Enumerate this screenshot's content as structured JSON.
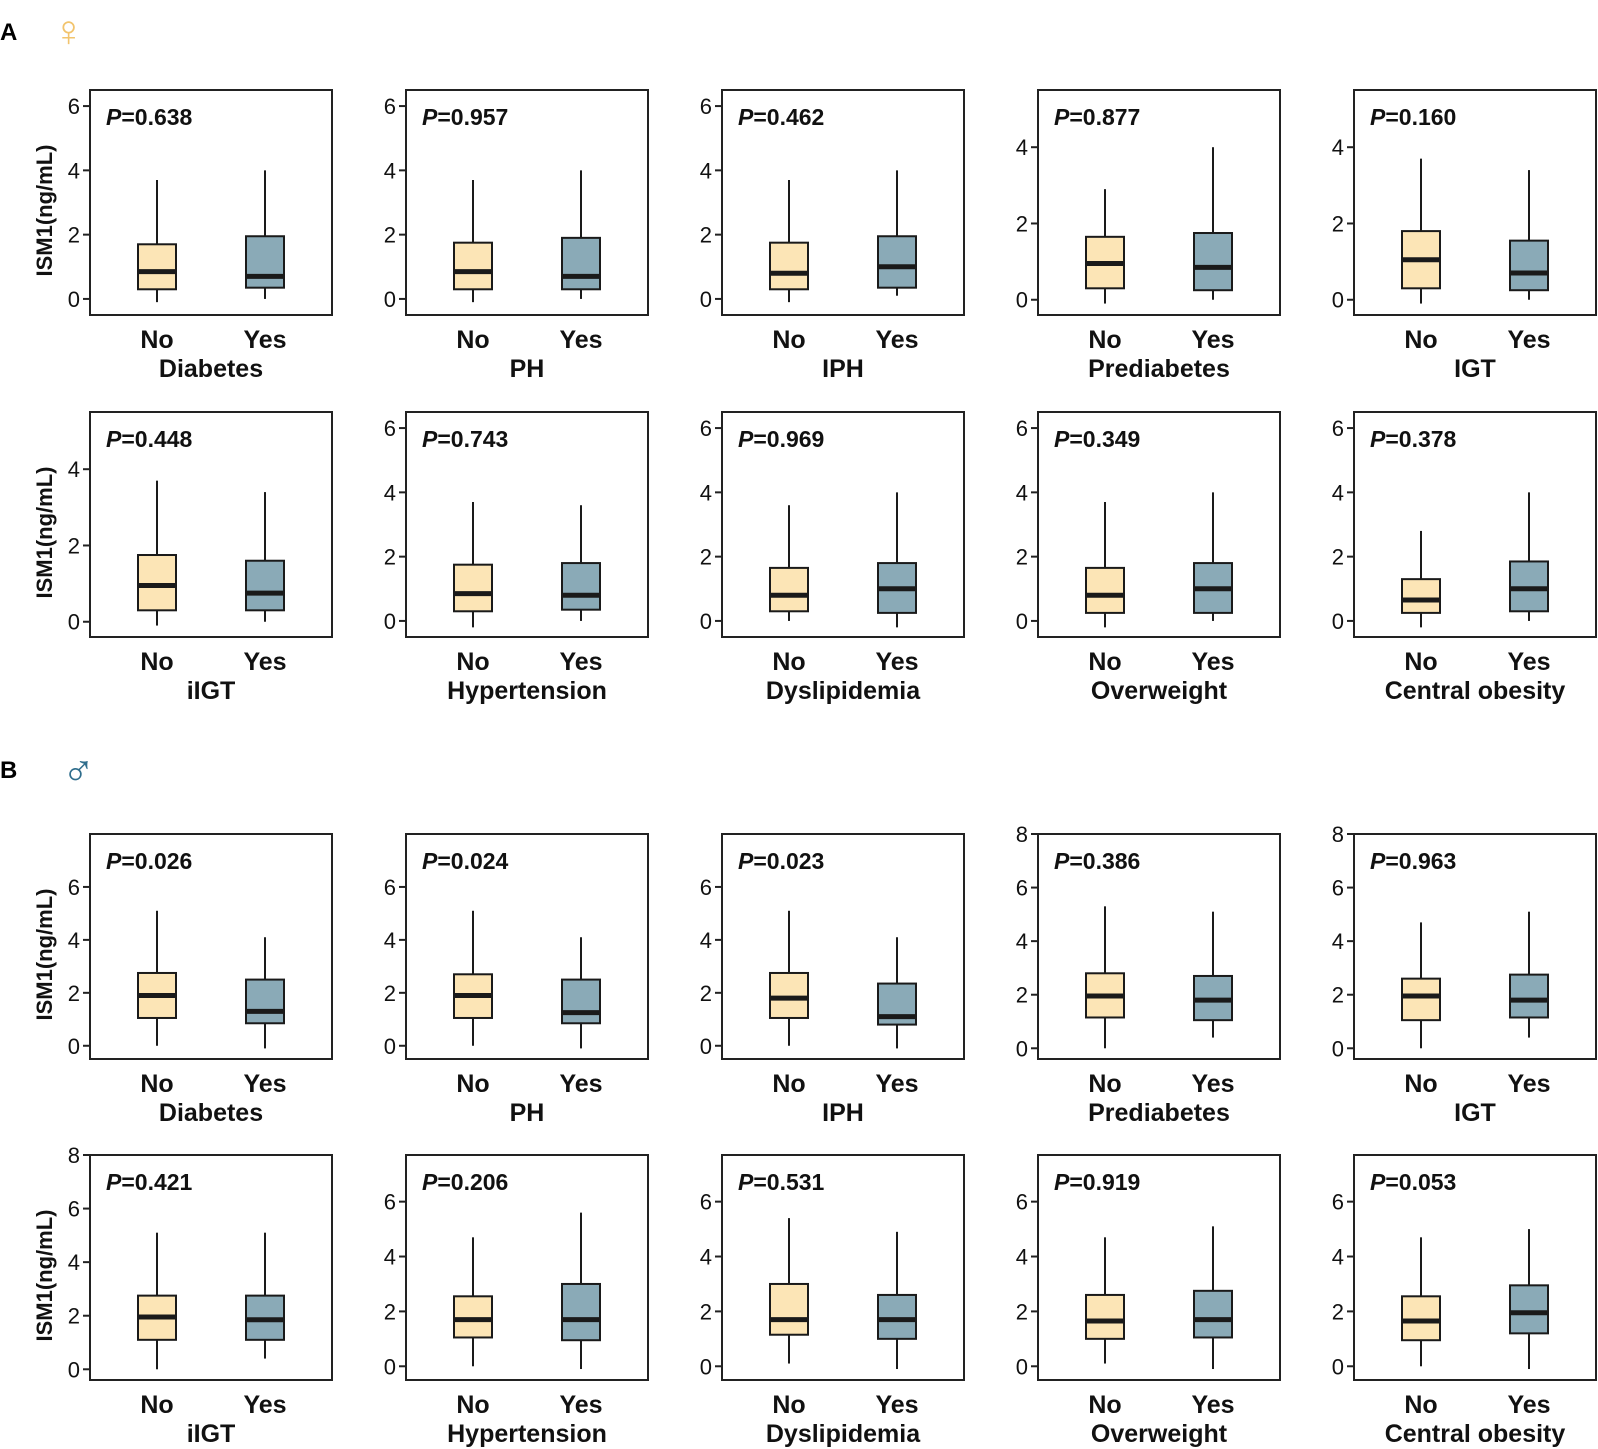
{
  "sections": [
    {
      "letter": "A",
      "symbol": "♀",
      "symbol_name": "female",
      "symbol_color": "#f2c46d"
    },
    {
      "letter": "B",
      "symbol": "♂",
      "symbol_name": "male",
      "symbol_color": "#2f6d8c"
    }
  ],
  "colors": {
    "no_box": "#fce5b6",
    "yes_box": "#8aaab7",
    "line": "#1a1a1a"
  },
  "y_label": "ISM1(ng/mL)",
  "group_labels": [
    "No",
    "Yes"
  ],
  "p_prefix": "P",
  "chart_data": [
    {
      "section": "A",
      "type": "boxplot",
      "title": "Diabetes",
      "p": "=0.638",
      "ylim": [
        -0.5,
        6.5
      ],
      "ticks": [
        0,
        2,
        4,
        6
      ],
      "boxes": [
        {
          "group": "No",
          "min": -0.1,
          "q1": 0.3,
          "median": 0.85,
          "q3": 1.7,
          "max": 3.7
        },
        {
          "group": "Yes",
          "min": 0.0,
          "q1": 0.35,
          "median": 0.7,
          "q3": 1.95,
          "max": 4.0
        }
      ]
    },
    {
      "section": "A",
      "type": "boxplot",
      "title": "PH",
      "p": "=0.957",
      "ylim": [
        -0.5,
        6.5
      ],
      "ticks": [
        0,
        2,
        4,
        6
      ],
      "boxes": [
        {
          "group": "No",
          "min": -0.1,
          "q1": 0.3,
          "median": 0.85,
          "q3": 1.75,
          "max": 3.7
        },
        {
          "group": "Yes",
          "min": 0.0,
          "q1": 0.3,
          "median": 0.7,
          "q3": 1.9,
          "max": 4.0
        }
      ]
    },
    {
      "section": "A",
      "type": "boxplot",
      "title": "IPH",
      "p": "=0.462",
      "ylim": [
        -0.5,
        6.5
      ],
      "ticks": [
        0,
        2,
        4,
        6
      ],
      "boxes": [
        {
          "group": "No",
          "min": -0.1,
          "q1": 0.3,
          "median": 0.8,
          "q3": 1.75,
          "max": 3.7
        },
        {
          "group": "Yes",
          "min": 0.1,
          "q1": 0.35,
          "median": 1.0,
          "q3": 1.95,
          "max": 4.0
        }
      ]
    },
    {
      "section": "A",
      "type": "boxplot",
      "title": "Prediabetes",
      "p": "=0.877",
      "ylim": [
        -0.4,
        5.5
      ],
      "ticks": [
        0,
        2,
        4
      ],
      "boxes": [
        {
          "group": "No",
          "min": -0.1,
          "q1": 0.3,
          "median": 0.95,
          "q3": 1.65,
          "max": 2.9
        },
        {
          "group": "Yes",
          "min": 0.0,
          "q1": 0.25,
          "median": 0.85,
          "q3": 1.75,
          "max": 4.0
        }
      ]
    },
    {
      "section": "A",
      "type": "boxplot",
      "title": "IGT",
      "p": "=0.160",
      "ylim": [
        -0.4,
        5.5
      ],
      "ticks": [
        0,
        2,
        4
      ],
      "boxes": [
        {
          "group": "No",
          "min": -0.1,
          "q1": 0.3,
          "median": 1.05,
          "q3": 1.8,
          "max": 3.7
        },
        {
          "group": "Yes",
          "min": 0.0,
          "q1": 0.25,
          "median": 0.7,
          "q3": 1.55,
          "max": 3.4
        }
      ]
    },
    {
      "section": "A",
      "type": "boxplot",
      "title": "iIGT",
      "p": "=0.448",
      "ylim": [
        -0.4,
        5.5
      ],
      "ticks": [
        0,
        2,
        4
      ],
      "boxes": [
        {
          "group": "No",
          "min": -0.1,
          "q1": 0.3,
          "median": 0.95,
          "q3": 1.75,
          "max": 3.7
        },
        {
          "group": "Yes",
          "min": 0.0,
          "q1": 0.3,
          "median": 0.75,
          "q3": 1.6,
          "max": 3.4
        }
      ]
    },
    {
      "section": "A",
      "type": "boxplot",
      "title": "Hypertension",
      "p": "=0.743",
      "ylim": [
        -0.5,
        6.5
      ],
      "ticks": [
        0,
        2,
        4,
        6
      ],
      "boxes": [
        {
          "group": "No",
          "min": -0.2,
          "q1": 0.3,
          "median": 0.85,
          "q3": 1.75,
          "max": 3.7
        },
        {
          "group": "Yes",
          "min": 0.0,
          "q1": 0.35,
          "median": 0.8,
          "q3": 1.8,
          "max": 3.6
        }
      ]
    },
    {
      "section": "A",
      "type": "boxplot",
      "title": "Dyslipidemia",
      "p": "=0.969",
      "ylim": [
        -0.5,
        6.5
      ],
      "ticks": [
        0,
        2,
        4,
        6
      ],
      "boxes": [
        {
          "group": "No",
          "min": 0.0,
          "q1": 0.3,
          "median": 0.8,
          "q3": 1.65,
          "max": 3.6
        },
        {
          "group": "Yes",
          "min": -0.2,
          "q1": 0.25,
          "median": 1.0,
          "q3": 1.8,
          "max": 4.0
        }
      ]
    },
    {
      "section": "A",
      "type": "boxplot",
      "title": "Overweight",
      "p": "=0.349",
      "ylim": [
        -0.5,
        6.5
      ],
      "ticks": [
        0,
        2,
        4,
        6
      ],
      "boxes": [
        {
          "group": "No",
          "min": -0.2,
          "q1": 0.25,
          "median": 0.8,
          "q3": 1.65,
          "max": 3.7
        },
        {
          "group": "Yes",
          "min": 0.0,
          "q1": 0.25,
          "median": 1.0,
          "q3": 1.8,
          "max": 4.0
        }
      ]
    },
    {
      "section": "A",
      "type": "boxplot",
      "title": "Central obesity",
      "p": "=0.378",
      "ylim": [
        -0.5,
        6.5
      ],
      "ticks": [
        0,
        2,
        4,
        6
      ],
      "boxes": [
        {
          "group": "No",
          "min": -0.2,
          "q1": 0.25,
          "median": 0.65,
          "q3": 1.3,
          "max": 2.8
        },
        {
          "group": "Yes",
          "min": 0.0,
          "q1": 0.3,
          "median": 1.0,
          "q3": 1.85,
          "max": 4.0
        }
      ]
    },
    {
      "section": "B",
      "type": "boxplot",
      "title": "Diabetes",
      "p": "=0.026",
      "ylim": [
        -0.5,
        8.0
      ],
      "ticks": [
        0,
        2,
        4,
        6
      ],
      "boxes": [
        {
          "group": "No",
          "min": 0.0,
          "q1": 1.05,
          "median": 1.9,
          "q3": 2.75,
          "max": 5.1
        },
        {
          "group": "Yes",
          "min": -0.1,
          "q1": 0.85,
          "median": 1.3,
          "q3": 2.5,
          "max": 4.1
        }
      ]
    },
    {
      "section": "B",
      "type": "boxplot",
      "title": "PH",
      "p": "=0.024",
      "ylim": [
        -0.5,
        8.0
      ],
      "ticks": [
        0,
        2,
        4,
        6
      ],
      "boxes": [
        {
          "group": "No",
          "min": 0.0,
          "q1": 1.05,
          "median": 1.9,
          "q3": 2.7,
          "max": 5.1
        },
        {
          "group": "Yes",
          "min": -0.1,
          "q1": 0.85,
          "median": 1.25,
          "q3": 2.5,
          "max": 4.1
        }
      ]
    },
    {
      "section": "B",
      "type": "boxplot",
      "title": "IPH",
      "p": "=0.023",
      "ylim": [
        -0.5,
        8.0
      ],
      "ticks": [
        0,
        2,
        4,
        6
      ],
      "boxes": [
        {
          "group": "No",
          "min": 0.0,
          "q1": 1.05,
          "median": 1.8,
          "q3": 2.75,
          "max": 5.1
        },
        {
          "group": "Yes",
          "min": -0.1,
          "q1": 0.8,
          "median": 1.1,
          "q3": 2.35,
          "max": 4.1
        }
      ]
    },
    {
      "section": "B",
      "type": "boxplot",
      "title": "Prediabetes",
      "p": "=0.386",
      "ylim": [
        -0.4,
        8.0
      ],
      "ticks": [
        0,
        2,
        4,
        6,
        8
      ],
      "boxes": [
        {
          "group": "No",
          "min": 0.0,
          "q1": 1.15,
          "median": 1.95,
          "q3": 2.8,
          "max": 5.3
        },
        {
          "group": "Yes",
          "min": 0.4,
          "q1": 1.05,
          "median": 1.8,
          "q3": 2.7,
          "max": 5.1
        }
      ]
    },
    {
      "section": "B",
      "type": "boxplot",
      "title": "IGT",
      "p": "=0.963",
      "ylim": [
        -0.4,
        8.0
      ],
      "ticks": [
        0,
        2,
        4,
        6,
        8
      ],
      "boxes": [
        {
          "group": "No",
          "min": 0.0,
          "q1": 1.05,
          "median": 1.95,
          "q3": 2.6,
          "max": 4.7
        },
        {
          "group": "Yes",
          "min": 0.4,
          "q1": 1.15,
          "median": 1.8,
          "q3": 2.75,
          "max": 5.1
        }
      ]
    },
    {
      "section": "B",
      "type": "boxplot",
      "title": "iIGT",
      "p": "=0.421",
      "ylim": [
        -0.4,
        8.0
      ],
      "ticks": [
        0,
        2,
        4,
        6,
        8
      ],
      "boxes": [
        {
          "group": "No",
          "min": 0.0,
          "q1": 1.1,
          "median": 1.95,
          "q3": 2.75,
          "max": 5.1
        },
        {
          "group": "Yes",
          "min": 0.4,
          "q1": 1.1,
          "median": 1.85,
          "q3": 2.75,
          "max": 5.1
        }
      ]
    },
    {
      "section": "B",
      "type": "boxplot",
      "title": "Hypertension",
      "p": "=0.206",
      "ylim": [
        -0.5,
        7.7
      ],
      "ticks": [
        0,
        2,
        4,
        6
      ],
      "boxes": [
        {
          "group": "No",
          "min": 0.0,
          "q1": 1.05,
          "median": 1.7,
          "q3": 2.55,
          "max": 4.7
        },
        {
          "group": "Yes",
          "min": -0.1,
          "q1": 0.95,
          "median": 1.7,
          "q3": 3.0,
          "max": 5.6
        }
      ]
    },
    {
      "section": "B",
      "type": "boxplot",
      "title": "Dyslipidemia",
      "p": "=0.531",
      "ylim": [
        -0.5,
        7.7
      ],
      "ticks": [
        0,
        2,
        4,
        6
      ],
      "boxes": [
        {
          "group": "No",
          "min": 0.1,
          "q1": 1.15,
          "median": 1.7,
          "q3": 3.0,
          "max": 5.4
        },
        {
          "group": "Yes",
          "min": -0.1,
          "q1": 1.0,
          "median": 1.7,
          "q3": 2.6,
          "max": 4.9
        }
      ]
    },
    {
      "section": "B",
      "type": "boxplot",
      "title": "Overweight",
      "p": "=0.919",
      "ylim": [
        -0.5,
        7.7
      ],
      "ticks": [
        0,
        2,
        4,
        6
      ],
      "boxes": [
        {
          "group": "No",
          "min": 0.1,
          "q1": 1.0,
          "median": 1.65,
          "q3": 2.6,
          "max": 4.7
        },
        {
          "group": "Yes",
          "min": -0.1,
          "q1": 1.05,
          "median": 1.7,
          "q3": 2.75,
          "max": 5.1
        }
      ]
    },
    {
      "section": "B",
      "type": "boxplot",
      "title": "Central obesity",
      "p": "=0.053",
      "ylim": [
        -0.5,
        7.7
      ],
      "ticks": [
        0,
        2,
        4,
        6
      ],
      "boxes": [
        {
          "group": "No",
          "min": 0.0,
          "q1": 0.95,
          "median": 1.65,
          "q3": 2.55,
          "max": 4.7
        },
        {
          "group": "Yes",
          "min": -0.1,
          "q1": 1.2,
          "median": 1.95,
          "q3": 2.95,
          "max": 5.0
        }
      ]
    }
  ]
}
